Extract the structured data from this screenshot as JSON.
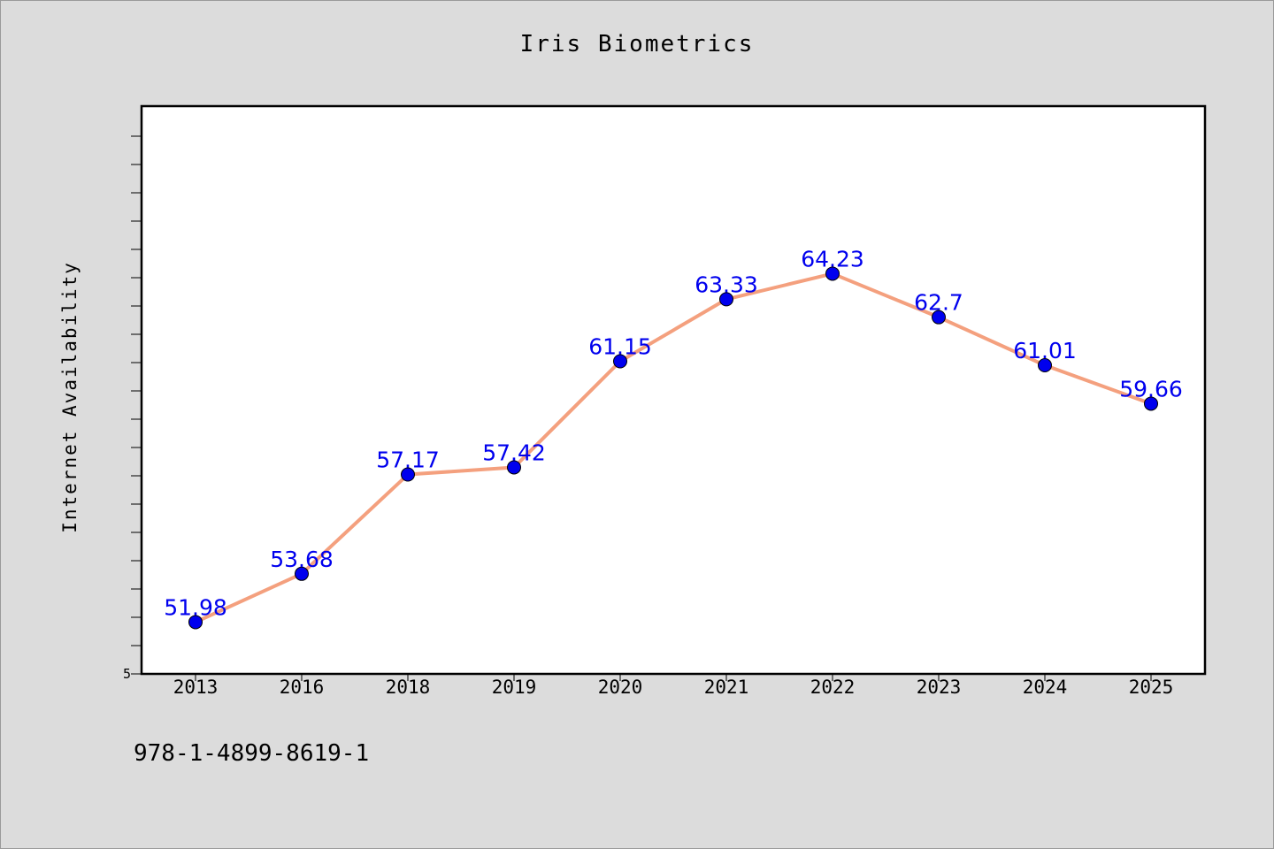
{
  "chart_data": {
    "type": "line",
    "title": "Iris Biometrics",
    "xlabel": "",
    "ylabel": "Internet Availability",
    "categories": [
      "2013",
      "2016",
      "2018",
      "2019",
      "2020",
      "2021",
      "2022",
      "2023",
      "2024",
      "2025"
    ],
    "series": [
      {
        "values": [
          51.98,
          53.68,
          57.17,
          57.42,
          61.15,
          63.33,
          64.23,
          62.7,
          61.01,
          59.66
        ],
        "line_color": "#f4a07e",
        "marker_color": "#0000ee"
      }
    ],
    "data_labels": [
      "51.98",
      "53.68",
      "57.17",
      "57.42",
      "61.15",
      "63.33",
      "64.23",
      "62.7",
      "61.01",
      "59.66"
    ],
    "y_axis_min_label": "5",
    "ylim": [
      50.16,
      70.12
    ],
    "grid": false
  },
  "footer": {
    "code": "978-1-4899-8619-1"
  },
  "colors": {
    "background": "#dcdcdc",
    "plot_background": "#ffffff",
    "line": "#f4a07e",
    "markers": "#0000ee",
    "data_labels": "#0000ee"
  }
}
